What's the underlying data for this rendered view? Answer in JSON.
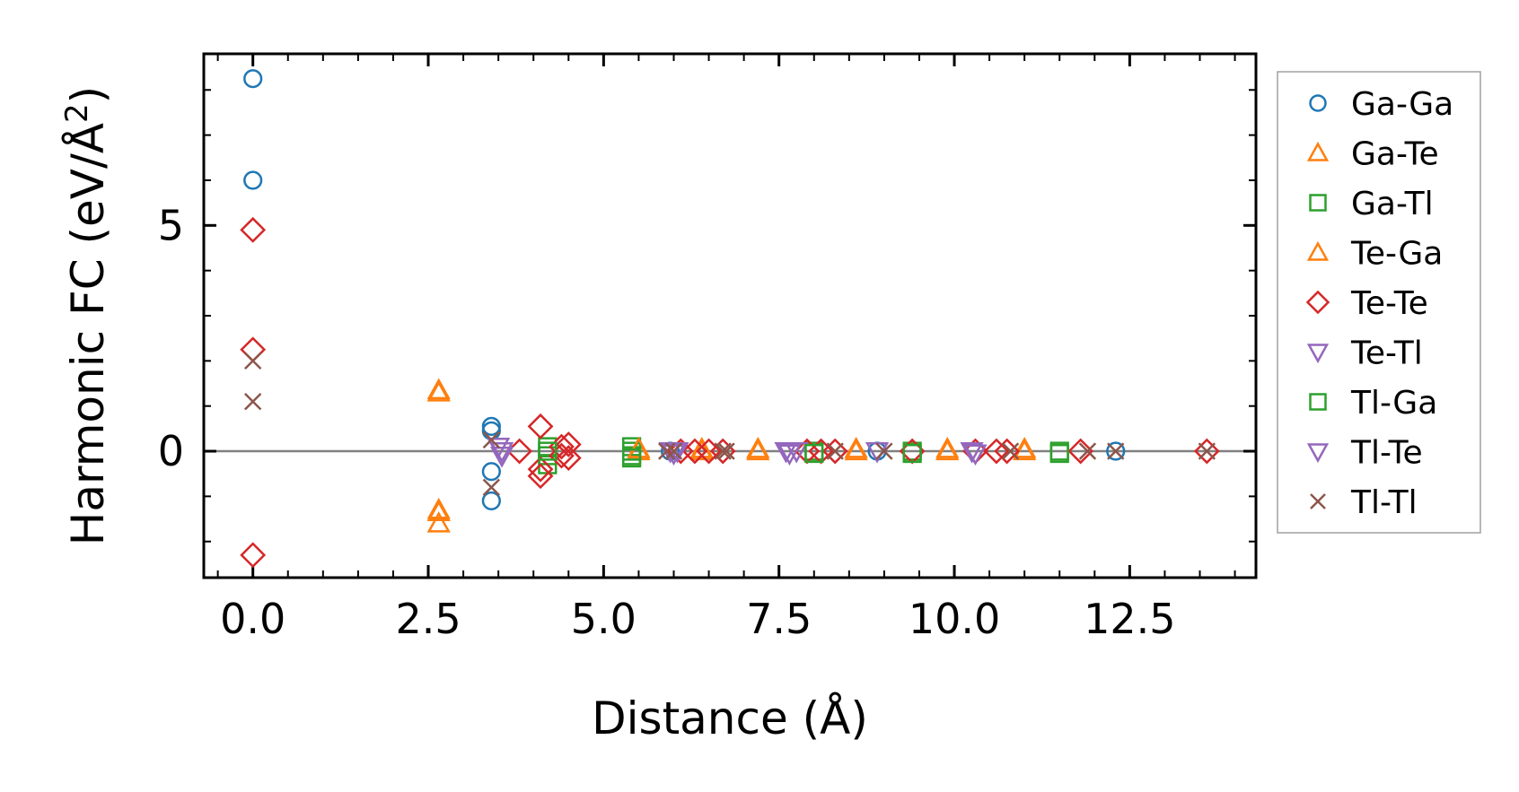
{
  "chart_data": {
    "type": "scatter",
    "title": "",
    "xlabel": "Distance (Å)",
    "ylabel_main": "Harmonic FC (eV/Å",
    "ylabel_sup": "2",
    "ylabel_tail": ")",
    "xlim": [
      -0.7,
      14.3
    ],
    "ylim": [
      -2.8,
      8.8
    ],
    "xticks": [
      0.0,
      2.5,
      5.0,
      7.5,
      10.0,
      12.5
    ],
    "xtick_labels": [
      "0.0",
      "2.5",
      "5.0",
      "7.5",
      "10.0",
      "12.5"
    ],
    "yticks": [
      0,
      5
    ],
    "ytick_labels": [
      "0",
      "5"
    ],
    "grid": false,
    "zero_line": true,
    "legend_position": "outside-right",
    "series": [
      {
        "name": "Ga-Ga",
        "marker": "circle",
        "color": "#1f77b4",
        "points": [
          [
            0.0,
            8.25
          ],
          [
            0.0,
            6.0
          ],
          [
            3.4,
            0.55
          ],
          [
            3.4,
            0.45
          ],
          [
            3.4,
            -0.45
          ],
          [
            3.4,
            -1.1
          ],
          [
            5.95,
            0.0
          ],
          [
            8.9,
            0.0
          ],
          [
            12.3,
            0.0
          ]
        ]
      },
      {
        "name": "Ga-Te",
        "marker": "triangle-up",
        "color": "#ff7f0e",
        "points": [
          [
            2.65,
            1.35
          ],
          [
            2.65,
            -1.35
          ],
          [
            2.65,
            -1.6
          ],
          [
            5.5,
            0.0
          ],
          [
            6.4,
            0.0
          ],
          [
            7.2,
            0.0
          ],
          [
            8.6,
            0.0
          ],
          [
            9.9,
            0.0
          ],
          [
            11.0,
            0.0
          ]
        ]
      },
      {
        "name": "Ga-Tl",
        "marker": "square",
        "color": "#2ca02c",
        "points": [
          [
            4.2,
            0.1
          ],
          [
            4.2,
            -0.1
          ],
          [
            4.2,
            -0.3
          ],
          [
            5.4,
            0.1
          ],
          [
            5.4,
            0.0
          ],
          [
            5.4,
            -0.1
          ],
          [
            8.0,
            0.0
          ],
          [
            9.4,
            0.0
          ],
          [
            11.5,
            0.0
          ]
        ]
      },
      {
        "name": "Te-Ga",
        "marker": "triangle-up",
        "color": "#ff7f0e",
        "points": [
          [
            2.65,
            1.3
          ],
          [
            2.65,
            -1.3
          ],
          [
            5.5,
            0.05
          ],
          [
            6.4,
            0.05
          ],
          [
            7.2,
            0.05
          ],
          [
            8.6,
            0.05
          ],
          [
            9.9,
            0.05
          ],
          [
            11.0,
            0.05
          ]
        ]
      },
      {
        "name": "Te-Te",
        "marker": "diamond",
        "color": "#d62728",
        "points": [
          [
            0.0,
            4.9
          ],
          [
            0.0,
            2.25
          ],
          [
            0.0,
            -2.3
          ],
          [
            3.8,
            0.0
          ],
          [
            4.1,
            0.55
          ],
          [
            4.1,
            -0.4
          ],
          [
            4.1,
            -0.55
          ],
          [
            4.4,
            0.1
          ],
          [
            4.4,
            -0.1
          ],
          [
            4.5,
            0.15
          ],
          [
            4.5,
            -0.15
          ],
          [
            6.1,
            0.0
          ],
          [
            6.3,
            0.0
          ],
          [
            6.5,
            0.0
          ],
          [
            6.7,
            0.0
          ],
          [
            7.9,
            0.0
          ],
          [
            8.1,
            0.0
          ],
          [
            8.3,
            0.0
          ],
          [
            9.4,
            0.0
          ],
          [
            10.3,
            0.0
          ],
          [
            10.6,
            0.0
          ],
          [
            10.75,
            0.0
          ],
          [
            11.8,
            0.0
          ],
          [
            13.6,
            0.0
          ]
        ]
      },
      {
        "name": "Te-Tl",
        "marker": "triangle-down",
        "color": "#9467bd",
        "points": [
          [
            3.5,
            0.1
          ],
          [
            3.55,
            -0.1
          ],
          [
            5.95,
            0.0
          ],
          [
            6.05,
            0.0
          ],
          [
            7.6,
            0.0
          ],
          [
            7.75,
            0.0
          ],
          [
            8.9,
            0.0
          ],
          [
            10.25,
            0.0
          ]
        ]
      },
      {
        "name": "Tl-Ga",
        "marker": "square",
        "color": "#2ca02c",
        "points": [
          [
            4.2,
            0.0
          ],
          [
            5.4,
            -0.15
          ],
          [
            8.0,
            -0.05
          ],
          [
            9.4,
            -0.05
          ],
          [
            11.5,
            -0.05
          ]
        ]
      },
      {
        "name": "Tl-Te",
        "marker": "triangle-down",
        "color": "#9467bd",
        "points": [
          [
            3.55,
            0.0
          ],
          [
            6.0,
            -0.05
          ],
          [
            7.65,
            -0.05
          ],
          [
            10.3,
            -0.05
          ]
        ]
      },
      {
        "name": "Tl-Tl",
        "marker": "x",
        "color": "#8c564b",
        "points": [
          [
            0.0,
            2.0
          ],
          [
            0.0,
            1.1
          ],
          [
            3.4,
            0.25
          ],
          [
            3.4,
            -0.8
          ],
          [
            5.9,
            0.0
          ],
          [
            6.0,
            0.0
          ],
          [
            6.7,
            0.0
          ],
          [
            6.75,
            0.0
          ],
          [
            8.3,
            0.0
          ],
          [
            9.0,
            0.0
          ],
          [
            10.8,
            0.0
          ],
          [
            11.9,
            0.0
          ],
          [
            12.3,
            0.0
          ],
          [
            13.6,
            0.0
          ]
        ]
      }
    ]
  }
}
